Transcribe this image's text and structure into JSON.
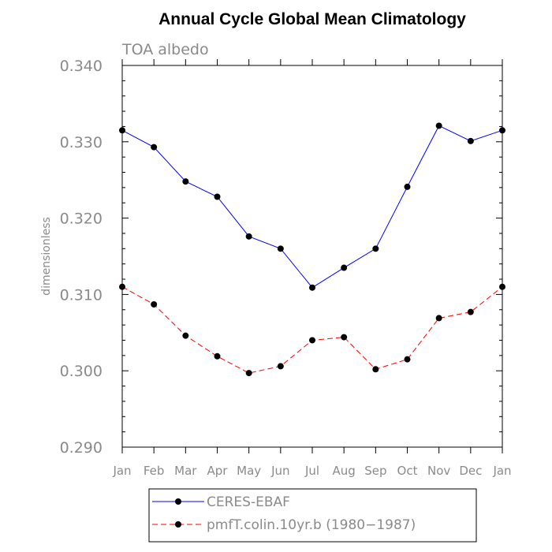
{
  "chart_data": {
    "type": "line",
    "title": "Annual Cycle Global Mean Climatology",
    "subtitle": "TOA albedo",
    "xlabel": "",
    "ylabel": "dimensionless",
    "categories": [
      "Jan",
      "Feb",
      "Mar",
      "Apr",
      "May",
      "Jun",
      "Jul",
      "Aug",
      "Sep",
      "Oct",
      "Nov",
      "Dec",
      "Jan"
    ],
    "ylim": [
      0.29,
      0.34
    ],
    "yticks": [
      "0.290",
      "0.300",
      "0.310",
      "0.320",
      "0.330",
      "0.340"
    ],
    "ytick_values": [
      0.29,
      0.3,
      0.31,
      0.32,
      0.33,
      0.34
    ],
    "grid": false,
    "legend_position": "bottom",
    "series": [
      {
        "name": "CERES-EBAF",
        "color": "#0000ff",
        "line_style": "solid",
        "values": [
          0.3315,
          0.3293,
          0.3248,
          0.3228,
          0.3176,
          0.316,
          0.3109,
          0.3135,
          0.316,
          0.3241,
          0.3321,
          0.3301,
          0.3315
        ]
      },
      {
        "name": "pmfT.colin.10yr.b (1980−1987)",
        "color": "#ff0000",
        "line_style": "dashed",
        "values": [
          0.311,
          0.3087,
          0.3046,
          0.3019,
          0.2997,
          0.3006,
          0.304,
          0.3044,
          0.3002,
          0.3015,
          0.3069,
          0.3077,
          0.311
        ]
      }
    ]
  }
}
